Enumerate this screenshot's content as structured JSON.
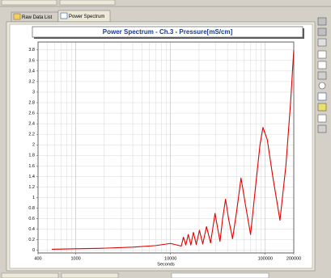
{
  "tabs": [
    "Raw Data List",
    "Power Spectrum"
  ],
  "chart_data": {
    "type": "line",
    "title": "Power Spectrum - Ch.3 - Pressure[mS/cm]",
    "x_label": "Seconds",
    "x": [
      560,
      1000,
      2000,
      4000,
      7000,
      10000,
      13000,
      13700,
      14500,
      15400,
      16400,
      17450,
      18700,
      20200,
      21900,
      24000,
      26500,
      29500,
      33300,
      35500,
      38100,
      41000,
      45200,
      50000,
      55500,
      62000,
      70000,
      80000,
      88000,
      94600,
      105000,
      120000,
      143000,
      165000,
      185000,
      200000
    ],
    "series": [
      {
        "color": "#e00000",
        "values": [
          0.02,
          0.03,
          0.04,
          0.06,
          0.09,
          0.13,
          0.08,
          0.25,
          0.1,
          0.3,
          0.1,
          0.34,
          0.11,
          0.38,
          0.12,
          0.45,
          0.14,
          0.7,
          0.17,
          0.6,
          0.97,
          0.6,
          0.22,
          0.75,
          1.37,
          0.85,
          0.3,
          1.3,
          2.0,
          2.33,
          2.1,
          1.4,
          0.57,
          1.6,
          2.8,
          3.8
        ]
      }
    ],
    "xlim": [
      400,
      200000
    ],
    "xticks": [
      400,
      1000,
      10000,
      100000,
      200000
    ],
    "xscale": "log",
    "ylim": [
      -0.05,
      3.95
    ],
    "yticks": [
      0,
      0.2,
      0.4,
      0.6,
      0.8,
      1,
      1.2,
      1.4,
      1.6,
      1.8,
      2,
      2.2,
      2.4,
      2.6,
      2.8,
      3,
      3.2,
      3.4,
      3.6,
      3.8
    ],
    "grid": true
  }
}
